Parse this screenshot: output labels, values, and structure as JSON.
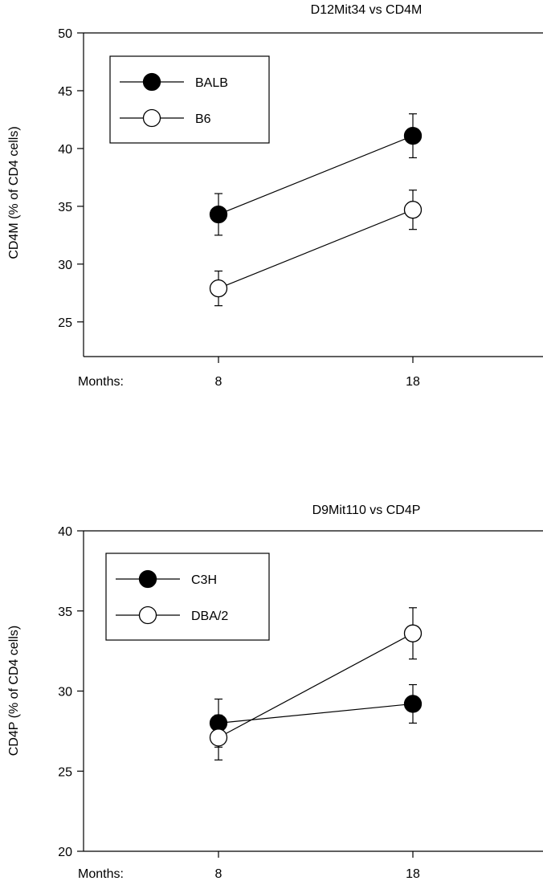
{
  "chart_data": [
    {
      "type": "line",
      "title": "D12Mit34 vs CD4M",
      "ylabel": "CD4M (% of CD4 cells)",
      "xlabel": "",
      "x_axis_prefix": "Months:",
      "categories": [
        "8",
        "18"
      ],
      "ylim": [
        22,
        50
      ],
      "yticks": [
        25,
        30,
        35,
        40,
        45,
        50
      ],
      "grid": false,
      "legend_position": "top-left",
      "series": [
        {
          "name": "BALB",
          "marker": "filled",
          "values": [
            34.3,
            41.1
          ],
          "errors": [
            1.8,
            1.9
          ]
        },
        {
          "name": "B6",
          "marker": "open",
          "values": [
            27.9,
            34.7
          ],
          "errors": [
            1.5,
            1.7
          ]
        }
      ]
    },
    {
      "type": "line",
      "title": "D9Mit110 vs CD4P",
      "ylabel": "CD4P (% of CD4 cells)",
      "xlabel": "",
      "x_axis_prefix": "Months:",
      "categories": [
        "8",
        "18"
      ],
      "ylim": [
        20,
        40
      ],
      "yticks": [
        20,
        25,
        30,
        35,
        40
      ],
      "grid": false,
      "legend_position": "top-left",
      "series": [
        {
          "name": "C3H",
          "marker": "filled",
          "values": [
            28.0,
            29.2
          ],
          "errors": [
            1.5,
            1.2
          ]
        },
        {
          "name": "DBA/2",
          "marker": "open",
          "values": [
            27.1,
            33.6
          ],
          "errors": [
            1.4,
            1.6
          ]
        }
      ]
    }
  ]
}
